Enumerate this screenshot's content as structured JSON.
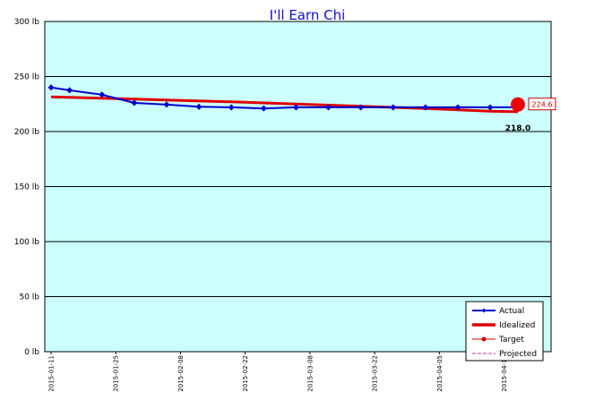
{
  "chart_data": {
    "type": "line",
    "title": "I'll Earn Chi",
    "xlabel": "",
    "ylabel": "",
    "x_start": "2015-01-11",
    "x_end": "2015-04-22",
    "x_tick_labels": [
      "2015-01-11",
      "2015-01-25",
      "2015-02-08",
      "2015-02-22",
      "2015-03-08",
      "2015-03-22",
      "2015-04-05",
      "2015-04-19"
    ],
    "y_range": [
      0,
      300
    ],
    "y_ticks": [
      0,
      50,
      100,
      150,
      200,
      250,
      300
    ],
    "y_unit": "lb",
    "y_tick_labels": [
      "0 lb",
      "50 lb",
      "100 lb",
      "150 lb",
      "200 lb",
      "250 lb",
      "300 lb"
    ],
    "grid": "horizontal",
    "legend_position": "bottom-right",
    "series": [
      {
        "name": "Actual",
        "color": "#0000cc",
        "points": [
          {
            "date": "2015-01-11",
            "value": 240
          },
          {
            "date": "2015-01-15",
            "value": 237.5
          },
          {
            "date": "2015-01-22",
            "value": 233.5
          },
          {
            "date": "2015-01-29",
            "value": 226
          },
          {
            "date": "2015-02-05",
            "value": 224.5
          },
          {
            "date": "2015-02-12",
            "value": 222.5
          },
          {
            "date": "2015-02-19",
            "value": 222
          },
          {
            "date": "2015-02-26",
            "value": 221
          },
          {
            "date": "2015-03-05",
            "value": 222
          },
          {
            "date": "2015-03-12",
            "value": 222
          },
          {
            "date": "2015-03-19",
            "value": 222
          },
          {
            "date": "2015-03-26",
            "value": 222
          },
          {
            "date": "2015-04-02",
            "value": 222
          },
          {
            "date": "2015-04-09",
            "value": 222
          },
          {
            "date": "2015-04-16",
            "value": 222
          },
          {
            "date": "2015-04-22",
            "value": 222
          }
        ]
      },
      {
        "name": "Idealized",
        "color": "#dd0000",
        "points": [
          {
            "date": "2015-01-11",
            "value": 231.5
          },
          {
            "date": "2015-01-29",
            "value": 229.5
          },
          {
            "date": "2015-02-19",
            "value": 227
          },
          {
            "date": "2015-03-12",
            "value": 224
          },
          {
            "date": "2015-04-02",
            "value": 221
          },
          {
            "date": "2015-04-16",
            "value": 218.5
          },
          {
            "date": "2015-04-22",
            "value": 218
          }
        ]
      },
      {
        "name": "Target",
        "color": "#cc0000",
        "points": []
      },
      {
        "name": "Projected",
        "color": "#cc33aa",
        "points": []
      }
    ],
    "annotations": {
      "current": {
        "date": "2015-04-22",
        "value": 224.6,
        "label": "224.6",
        "color": "#ee0000"
      },
      "target": {
        "date": "2015-04-22",
        "value": 218,
        "label": "218.0"
      }
    }
  }
}
